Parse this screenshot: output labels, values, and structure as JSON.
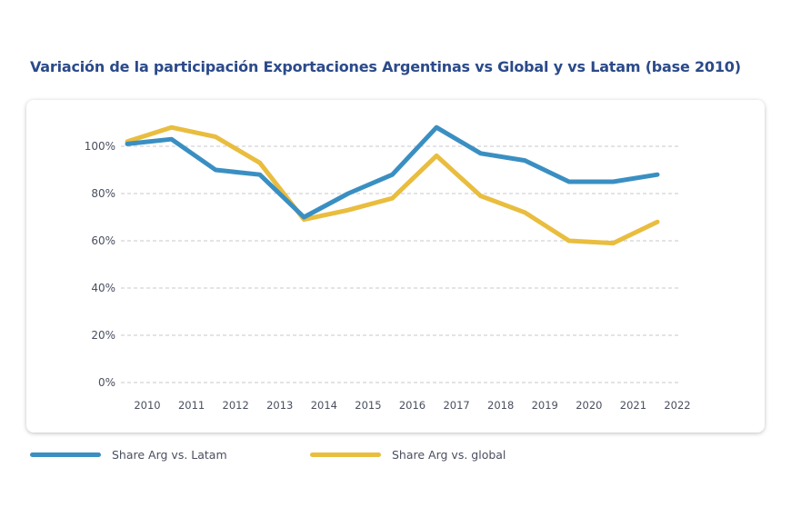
{
  "chart_data": {
    "type": "line",
    "title": "Variación de la participación Exportaciones Argentinas vs Global y vs Latam (base 2010)",
    "xlabel": "",
    "ylabel": "",
    "x": [
      "2010",
      "2011",
      "2012",
      "2013",
      "2014",
      "2015",
      "2016",
      "2017",
      "2018",
      "2019",
      "2020",
      "2021",
      "2022"
    ],
    "ylim": [
      0,
      100
    ],
    "yticks": [
      "0%",
      "20%",
      "40%",
      "60%",
      "80%",
      "100%"
    ],
    "ytick_values": [
      0,
      20,
      40,
      60,
      80,
      100
    ],
    "grid": true,
    "legend_position": "bottom-left",
    "series": [
      {
        "name": "Share Arg vs. Latam",
        "color": "#3a8fc2",
        "values": [
          101,
          103,
          90,
          88,
          70,
          80,
          88,
          108,
          97,
          94,
          85,
          85,
          88
        ]
      },
      {
        "name": "Share Arg vs. global",
        "color": "#e9bd3e",
        "values": [
          102,
          108,
          104,
          93,
          69,
          73,
          78,
          96,
          79,
          72,
          60,
          59,
          68
        ]
      }
    ]
  }
}
